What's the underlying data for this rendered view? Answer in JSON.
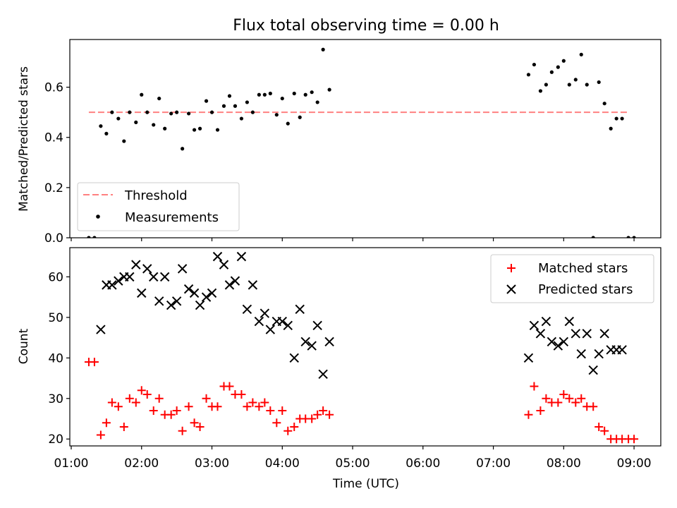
{
  "figure": {
    "title": "Flux total observing time = 0.00 h",
    "xlabel": "Time (UTC)",
    "x_ticks": [
      "01:00",
      "02:00",
      "03:00",
      "04:00",
      "05:00",
      "06:00",
      "07:00",
      "08:00",
      "09:00"
    ]
  },
  "chart_data": [
    {
      "type": "scatter",
      "ylabel": "Matched/Predicted stars",
      "xlim": [
        0.98,
        9.38
      ],
      "ylim": [
        0.0,
        0.79
      ],
      "y_ticks": [
        "0.0",
        "0.2",
        "0.4",
        "0.6"
      ],
      "y_tick_values": [
        0.0,
        0.2,
        0.4,
        0.6
      ],
      "legend_position": "lower-left",
      "threshold": {
        "name": "Threshold",
        "value": 0.5,
        "x_start": 1.25,
        "x_end": 8.92,
        "color": "#ff8080",
        "style": "dashed"
      },
      "series": [
        {
          "name": "Measurements",
          "color": "#000000",
          "marker": "dot",
          "x": [
            1.25,
            1.33,
            1.42,
            1.5,
            1.58,
            1.67,
            1.75,
            1.83,
            1.92,
            2.0,
            2.08,
            2.17,
            2.25,
            2.33,
            2.42,
            2.5,
            2.58,
            2.67,
            2.75,
            2.83,
            2.92,
            3.0,
            3.08,
            3.17,
            3.25,
            3.33,
            3.42,
            3.5,
            3.58,
            3.67,
            3.75,
            3.83,
            3.92,
            4.0,
            4.08,
            4.17,
            4.25,
            4.33,
            4.42,
            4.5,
            4.58,
            4.67,
            7.5,
            7.58,
            7.67,
            7.75,
            7.83,
            7.92,
            8.0,
            8.08,
            8.17,
            8.25,
            8.33,
            8.42,
            8.5,
            8.58,
            8.67,
            8.75,
            8.83,
            8.92,
            9.0
          ],
          "y": [
            0.0,
            0.0,
            0.445,
            0.415,
            0.5,
            0.475,
            0.385,
            0.5,
            0.46,
            0.57,
            0.5,
            0.45,
            0.555,
            0.435,
            0.495,
            0.5,
            0.355,
            0.495,
            0.43,
            0.435,
            0.545,
            0.5,
            0.43,
            0.525,
            0.565,
            0.525,
            0.475,
            0.54,
            0.5,
            0.57,
            0.57,
            0.575,
            0.49,
            0.555,
            0.455,
            0.575,
            0.48,
            0.57,
            0.58,
            0.54,
            0.75,
            0.59,
            0.65,
            0.69,
            0.585,
            0.61,
            0.66,
            0.68,
            0.705,
            0.61,
            0.63,
            0.73,
            0.61,
            0.0,
            0.62,
            0.535,
            0.435,
            0.475,
            0.475,
            0.0,
            0.0
          ]
        }
      ]
    },
    {
      "type": "scatter",
      "ylabel": "Count",
      "xlim": [
        0.98,
        9.38
      ],
      "ylim": [
        18.3,
        67.2
      ],
      "y_ticks": [
        "20",
        "30",
        "40",
        "50",
        "60"
      ],
      "y_tick_values": [
        20,
        30,
        40,
        50,
        60
      ],
      "legend_position": "top-right",
      "series": [
        {
          "name": "Matched stars",
          "color": "#ff0000",
          "marker": "plus",
          "x": [
            1.25,
            1.33,
            1.42,
            1.5,
            1.58,
            1.67,
            1.75,
            1.83,
            1.92,
            2.0,
            2.08,
            2.17,
            2.25,
            2.33,
            2.42,
            2.5,
            2.58,
            2.67,
            2.75,
            2.83,
            2.92,
            3.0,
            3.08,
            3.17,
            3.25,
            3.33,
            3.42,
            3.5,
            3.58,
            3.67,
            3.75,
            3.83,
            3.92,
            4.0,
            4.08,
            4.17,
            4.25,
            4.33,
            4.42,
            4.5,
            4.58,
            4.67,
            7.5,
            7.58,
            7.67,
            7.75,
            7.83,
            7.92,
            8.0,
            8.08,
            8.17,
            8.25,
            8.33,
            8.42,
            8.5,
            8.58,
            8.67,
            8.75,
            8.83,
            8.92,
            9.0
          ],
          "y": [
            39,
            39,
            21,
            24,
            29,
            28,
            23,
            30,
            29,
            32,
            31,
            27,
            30,
            26,
            26,
            27,
            22,
            28,
            24,
            23,
            30,
            28,
            28,
            33,
            33,
            31,
            31,
            28,
            29,
            28,
            29,
            27,
            24,
            27,
            22,
            23,
            25,
            25,
            25,
            26,
            27,
            26,
            26,
            33,
            27,
            30,
            29,
            29,
            31,
            30,
            29,
            30,
            28,
            28,
            23,
            22,
            20,
            20,
            20,
            20,
            20
          ]
        },
        {
          "name": "Predicted stars",
          "color": "#000000",
          "marker": "x",
          "x": [
            1.42,
            1.5,
            1.58,
            1.67,
            1.75,
            1.83,
            1.92,
            2.0,
            2.08,
            2.17,
            2.25,
            2.33,
            2.42,
            2.5,
            2.58,
            2.67,
            2.75,
            2.83,
            2.92,
            3.0,
            3.08,
            3.17,
            3.25,
            3.33,
            3.42,
            3.5,
            3.58,
            3.67,
            3.75,
            3.83,
            3.92,
            4.0,
            4.08,
            4.17,
            4.25,
            4.33,
            4.42,
            4.5,
            4.58,
            4.67,
            7.5,
            7.58,
            7.67,
            7.75,
            7.83,
            7.92,
            8.0,
            8.08,
            8.17,
            8.25,
            8.33,
            8.42,
            8.5,
            8.58,
            8.67,
            8.75,
            8.83
          ],
          "y": [
            47,
            58,
            58,
            59,
            60,
            60,
            63,
            56,
            62,
            60,
            54,
            60,
            53,
            54,
            62,
            57,
            56,
            53,
            55,
            56,
            65,
            63,
            58,
            59,
            65,
            52,
            58,
            49,
            51,
            47,
            49,
            49,
            48,
            40,
            52,
            44,
            43,
            48,
            36,
            44,
            40,
            48,
            46,
            49,
            44,
            43,
            44,
            49,
            46,
            41,
            46,
            37,
            41,
            46,
            42,
            42,
            42
          ]
        }
      ]
    }
  ]
}
